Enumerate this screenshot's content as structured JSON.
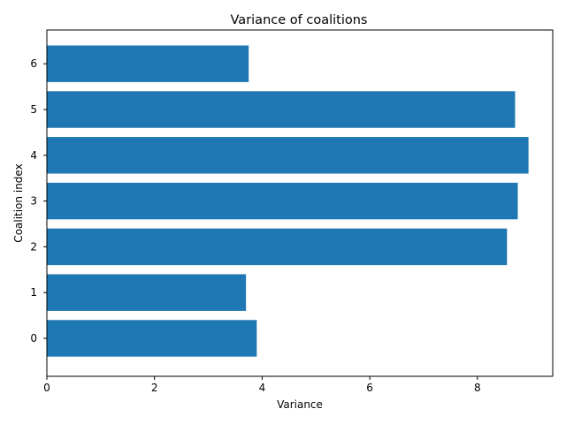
{
  "chart_data": {
    "type": "bar",
    "orientation": "horizontal",
    "title": "Variance of coalitions",
    "xlabel": "Variance",
    "ylabel": "Coalition index",
    "categories": [
      "0",
      "1",
      "2",
      "3",
      "4",
      "5",
      "6"
    ],
    "values": [
      3.9,
      3.7,
      8.55,
      8.75,
      8.95,
      8.7,
      3.75
    ],
    "xlim": [
      0,
      9.4
    ],
    "xticks": [
      "0",
      "2",
      "4",
      "6",
      "8"
    ],
    "grid": false,
    "bar_color": "#1f77b4"
  }
}
